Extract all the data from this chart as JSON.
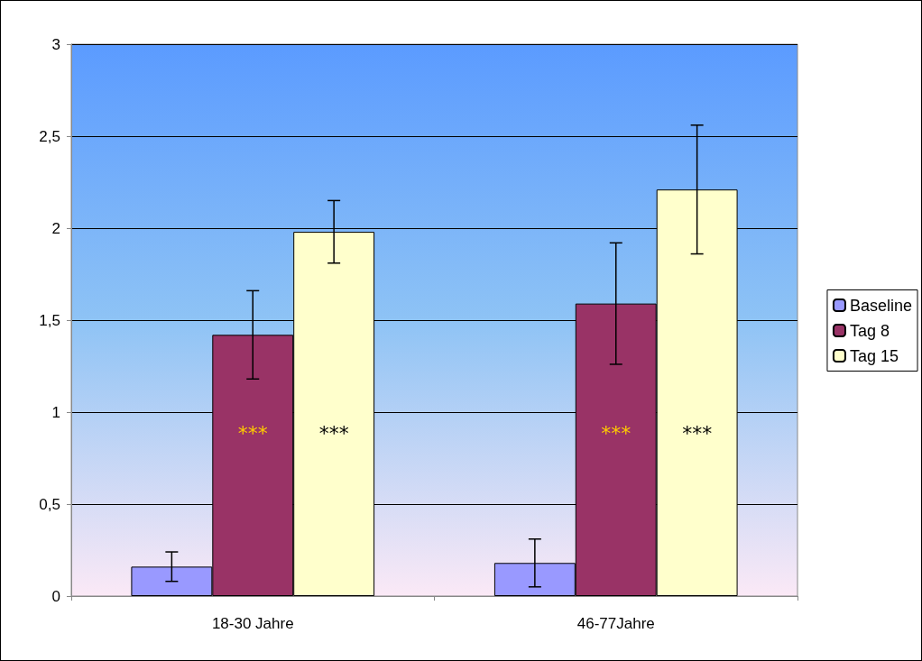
{
  "chart_data": {
    "type": "bar",
    "categories": [
      "18-30 Jahre",
      "46-77Jahre"
    ],
    "series": [
      {
        "name": "Baseline",
        "color": "#9999ff",
        "values": [
          0.16,
          0.18
        ],
        "errors": [
          0.08,
          0.13
        ]
      },
      {
        "name": "Tag 8",
        "color": "#993366",
        "values": [
          1.42,
          1.59
        ],
        "errors": [
          0.24,
          0.33
        ],
        "value_labels": [
          "***",
          "***"
        ]
      },
      {
        "name": "Tag 15",
        "color": "#ffffcc",
        "values": [
          1.98,
          2.21
        ],
        "errors": [
          0.17,
          0.35
        ],
        "value_labels": [
          "***",
          "***"
        ]
      }
    ],
    "ylim": [
      0,
      3
    ],
    "yticks": [
      0,
      {
        "value": 0.5,
        "label": "0,5"
      },
      1,
      {
        "value": 1.5,
        "label": "1,5"
      },
      2,
      {
        "value": 2.5,
        "label": "2,5"
      },
      3
    ],
    "grid": "y",
    "legend": "right"
  }
}
